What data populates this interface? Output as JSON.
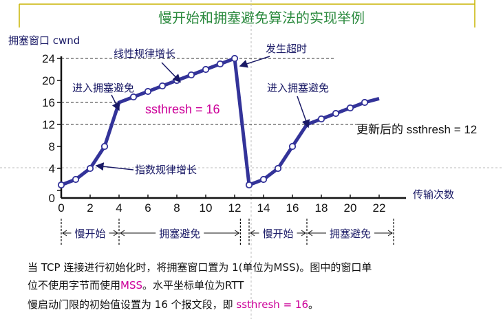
{
  "title": "慢开始和拥塞避免算法的实现举例",
  "chart_data": {
    "type": "line",
    "ylabel": "拥塞窗口 cwnd",
    "xlabel": "传输次数",
    "xlim": [
      0,
      22
    ],
    "ylim": [
      0,
      24
    ],
    "x_ticks": [
      0,
      2,
      4,
      6,
      8,
      10,
      12,
      14,
      16,
      18,
      20,
      22
    ],
    "y_ticks": [
      0,
      4,
      8,
      12,
      16,
      20,
      24
    ],
    "grid": false,
    "series": [
      {
        "x": [
          0,
          1,
          2,
          3,
          4,
          5,
          6,
          7,
          8,
          9,
          10,
          11,
          12
        ],
        "values": [
          1,
          2,
          4,
          8,
          16,
          17,
          18,
          19,
          20,
          21,
          22,
          23,
          24
        ]
      },
      {
        "x": [
          13,
          14,
          15,
          16,
          17,
          18,
          19,
          20,
          21
        ],
        "values": [
          1,
          2,
          4,
          8,
          12,
          13,
          14,
          15,
          16
        ]
      }
    ],
    "tail": {
      "x": 22,
      "y": 16.7
    },
    "reference_lines": [
      {
        "y": 24,
        "x_to": 19
      },
      {
        "y": 16,
        "x_to": 4
      },
      {
        "y": 12,
        "x_to": 21
      }
    ],
    "threshold_points": [
      [
        4,
        16
      ],
      [
        17,
        12
      ]
    ],
    "annotations": {
      "linear": "线性规律增长",
      "timeout": "发生超时",
      "enter_ca_1": "进入拥塞避免",
      "enter_ca_2": "进入拥塞避免",
      "exponential": "指数规律增长",
      "ssthresh": "ssthresh = 16",
      "new_ssthresh": "更新后的 ssthresh = 12"
    },
    "phases": [
      {
        "label": "慢开始",
        "from": 0,
        "to": 4
      },
      {
        "label": "拥塞避免",
        "from": 4,
        "to": 12.4
      },
      {
        "label": "慢开始",
        "from": 13,
        "to": 17
      },
      {
        "label": "拥塞避免",
        "from": 17,
        "to": 23
      }
    ],
    "line_color": "#333399"
  },
  "notes": {
    "line1_pre": "当 TCP 连接进行初始化时，将拥塞窗口置为 1(单位为MSS)。图中的窗口单",
    "line2_pre": "位不使用字节而使用",
    "line2_hl": "MSS",
    "line2_post": "。水平坐标单位为RTT",
    "line3_pre": "慢启动门限的初始值设置为 16 个报文段，即 ",
    "line3_hl": "ssthresh = 16",
    "line3_post": "。"
  }
}
